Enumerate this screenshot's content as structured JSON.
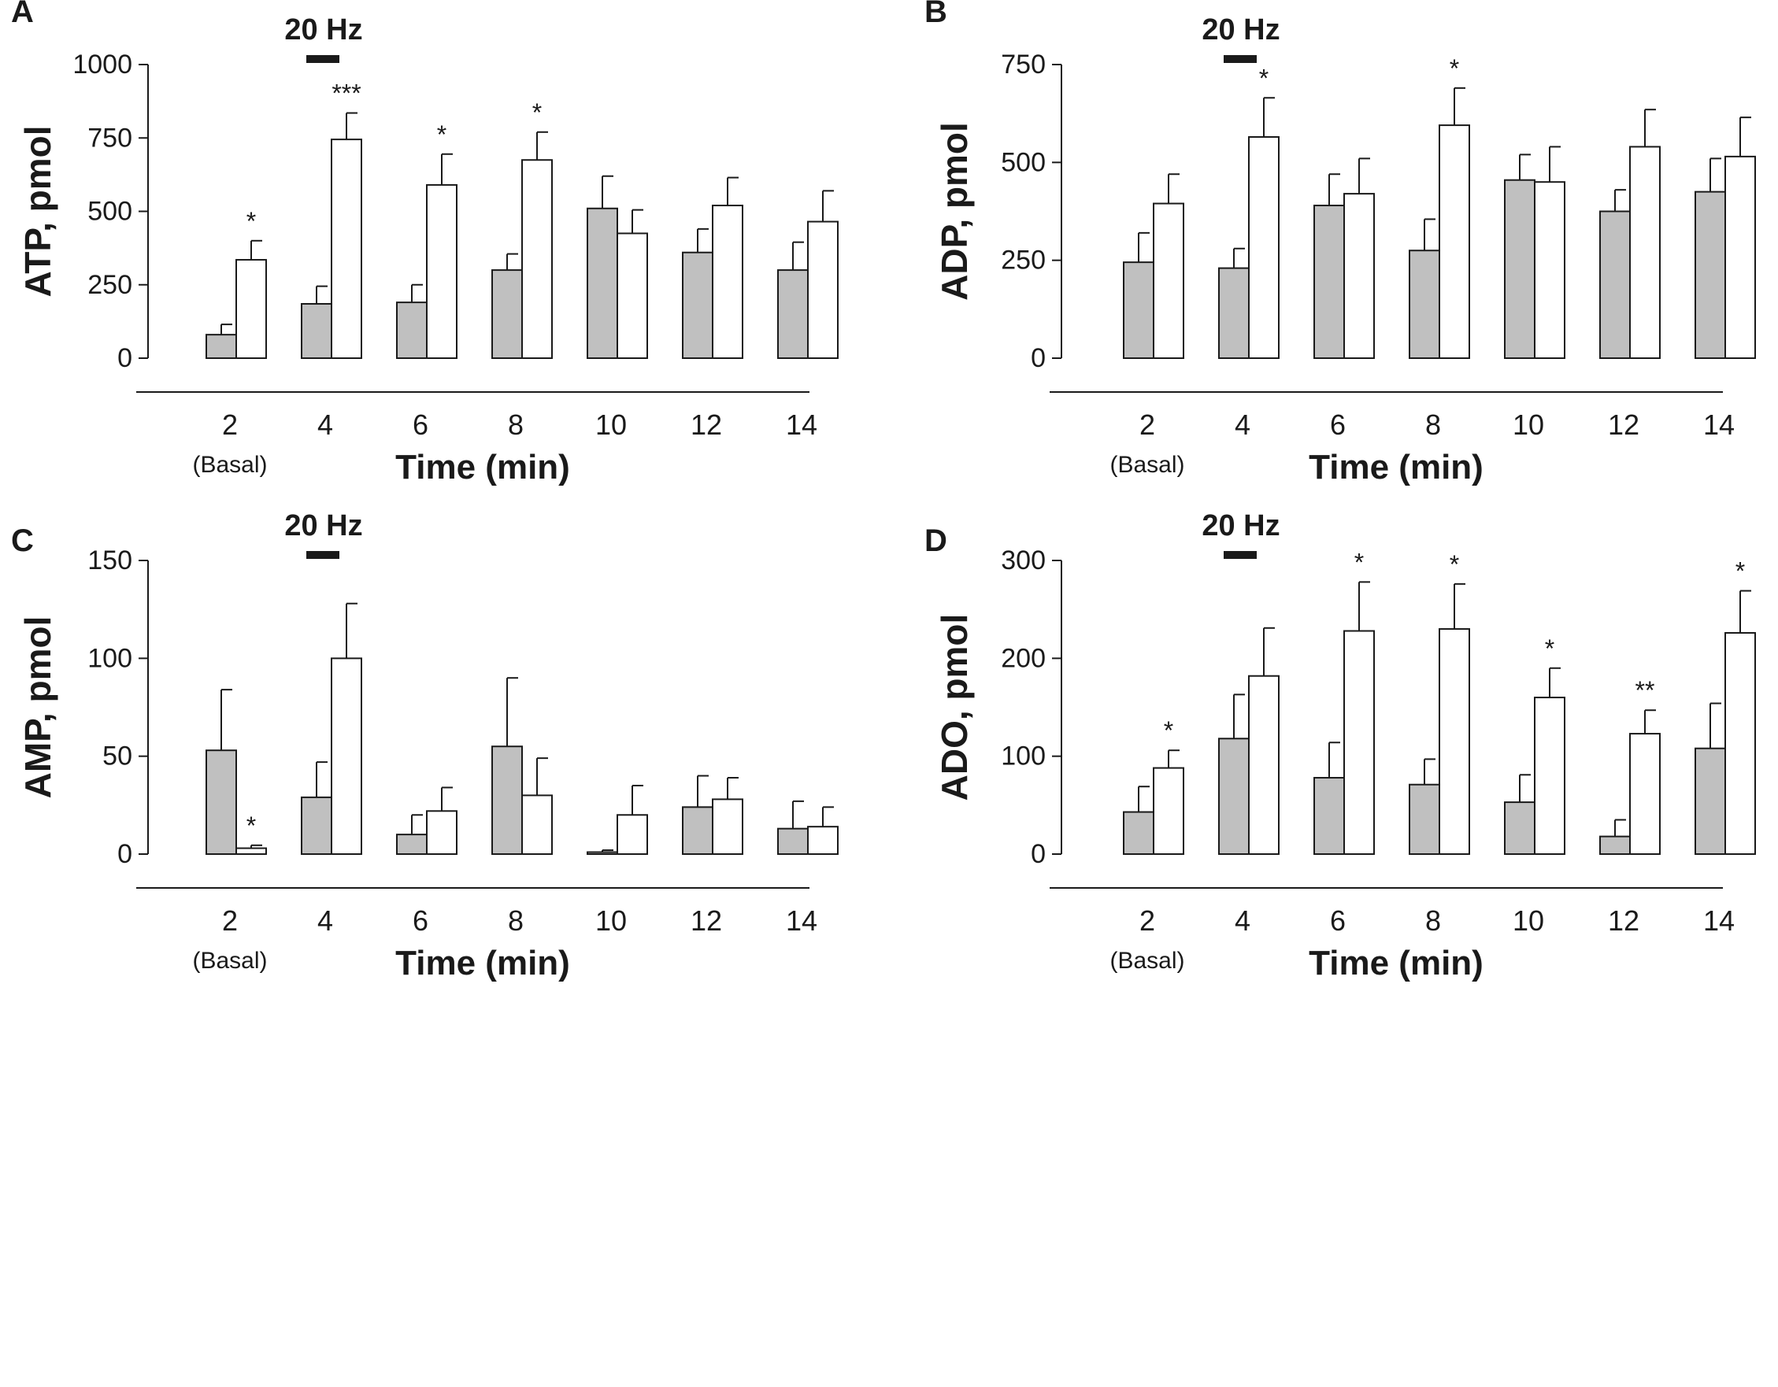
{
  "figure_title": "",
  "chart_data": [
    {
      "panel": "A",
      "type": "bar",
      "title": "",
      "ylabel": "ATP,  pmol",
      "xlabel": "Time (min)",
      "stimulus_label": "20 Hz",
      "categories": [
        "2",
        "4",
        "6",
        "8",
        "10",
        "12",
        "14"
      ],
      "category_note": "(Basal)",
      "ylim": [
        0,
        1000
      ],
      "yticks": [
        0,
        250,
        500,
        750,
        1000
      ],
      "ytick_labels": [
        "0",
        "250",
        "500",
        "750",
        "1000"
      ],
      "series": [
        {
          "name": "gray",
          "values": [
            80,
            185,
            190,
            300,
            510,
            360,
            300
          ],
          "errors": [
            35,
            60,
            60,
            55,
            110,
            80,
            95
          ]
        },
        {
          "name": "white",
          "values": [
            335,
            745,
            590,
            675,
            425,
            520,
            465
          ],
          "errors": [
            65,
            90,
            105,
            95,
            80,
            95,
            105
          ]
        }
      ],
      "significance": [
        "*",
        "***",
        "*",
        "*",
        "",
        "",
        ""
      ]
    },
    {
      "panel": "B",
      "type": "bar",
      "title": "",
      "ylabel": "ADP, pmol",
      "xlabel": "Time (min)",
      "stimulus_label": "20 Hz",
      "categories": [
        "2",
        "4",
        "6",
        "8",
        "10",
        "12",
        "14"
      ],
      "category_note": "(Basal)",
      "ylim": [
        0,
        750
      ],
      "yticks": [
        0,
        250,
        500,
        750
      ],
      "ytick_labels": [
        "0",
        "250",
        "500",
        "750"
      ],
      "series": [
        {
          "name": "gray",
          "values": [
            245,
            230,
            390,
            275,
            455,
            375,
            425
          ],
          "errors": [
            75,
            50,
            80,
            80,
            65,
            55,
            85
          ]
        },
        {
          "name": "white",
          "values": [
            395,
            565,
            420,
            595,
            450,
            540,
            515
          ],
          "errors": [
            75,
            100,
            90,
            95,
            90,
            95,
            100
          ]
        }
      ],
      "significance": [
        "",
        "*",
        "",
        "*",
        "",
        "",
        ""
      ]
    },
    {
      "panel": "C",
      "type": "bar",
      "title": "",
      "ylabel": "AMP, pmol",
      "xlabel": "Time (min)",
      "stimulus_label": "20 Hz",
      "categories": [
        "2",
        "4",
        "6",
        "8",
        "10",
        "12",
        "14"
      ],
      "category_note": "(Basal)",
      "ylim": [
        0,
        150
      ],
      "yticks": [
        0,
        50,
        100,
        150
      ],
      "ytick_labels": [
        "0",
        "50",
        "100",
        "150"
      ],
      "series": [
        {
          "name": "gray",
          "values": [
            53,
            29,
            10,
            55,
            1,
            24,
            13
          ],
          "errors": [
            31,
            18,
            10,
            35,
            1,
            16,
            14
          ]
        },
        {
          "name": "white",
          "values": [
            3,
            100,
            22,
            30,
            20,
            28,
            14
          ],
          "errors": [
            1.5,
            28,
            12,
            19,
            15,
            11,
            10
          ]
        }
      ],
      "significance": [
        "*",
        "",
        "",
        "",
        "",
        "",
        ""
      ]
    },
    {
      "panel": "D",
      "type": "bar",
      "title": "",
      "ylabel": "ADO, pmol",
      "xlabel": "Time (min)",
      "stimulus_label": "20 Hz",
      "categories": [
        "2",
        "4",
        "6",
        "8",
        "10",
        "12",
        "14"
      ],
      "category_note": "(Basal)",
      "ylim": [
        0,
        300
      ],
      "yticks": [
        0,
        100,
        200,
        300
      ],
      "ytick_labels": [
        "0",
        "100",
        "200",
        "300"
      ],
      "series": [
        {
          "name": "gray",
          "values": [
            43,
            118,
            78,
            71,
            53,
            18,
            108
          ],
          "errors": [
            26,
            45,
            36,
            26,
            28,
            17,
            46
          ]
        },
        {
          "name": "white",
          "values": [
            88,
            182,
            228,
            230,
            160,
            123,
            226
          ],
          "errors": [
            18,
            49,
            50,
            46,
            30,
            24,
            43
          ]
        }
      ],
      "significance": [
        "*",
        "",
        "*",
        "*",
        "*",
        "**",
        "*"
      ]
    }
  ],
  "colors": {
    "gray_bar": "#c0c0c0",
    "white_bar": "#ffffff",
    "ink": "#1a1a1a"
  }
}
